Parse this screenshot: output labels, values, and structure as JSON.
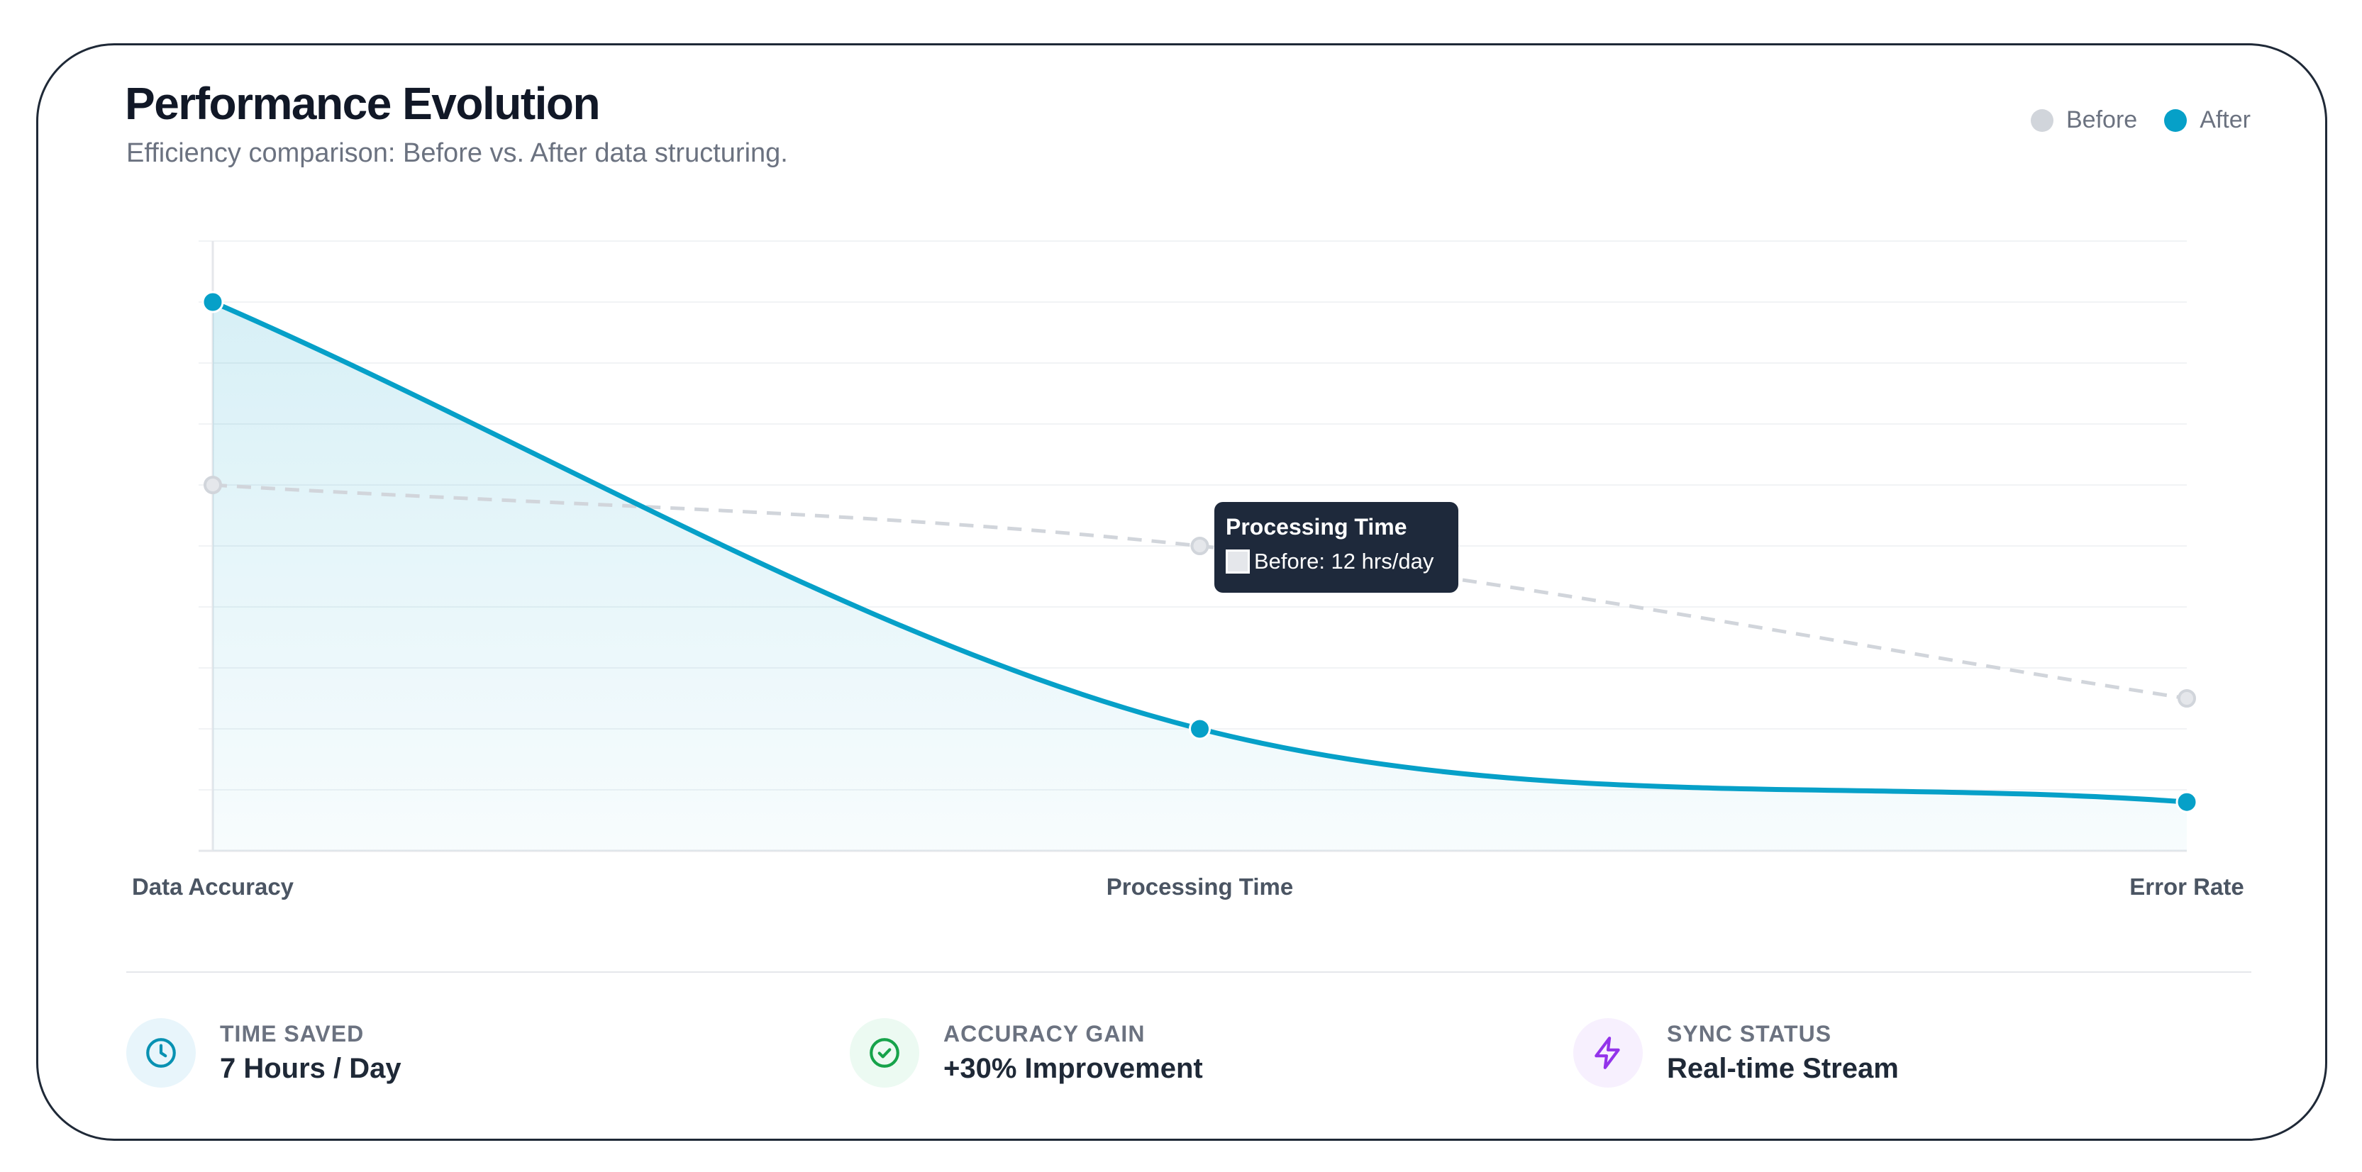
{
  "header": {
    "title": "Performance Evolution",
    "subtitle": "Efficiency comparison: Before vs. After data structuring."
  },
  "legend": [
    {
      "label": "Before",
      "color": "#d1d5db"
    },
    {
      "label": "After",
      "color": "#06a0c8"
    }
  ],
  "chart_data": {
    "type": "line",
    "title": "Performance Evolution",
    "subtitle": "Efficiency comparison: Before vs. After data structuring.",
    "categories": [
      "Data Accuracy",
      "Processing Time",
      "Error Rate"
    ],
    "ylim": [
      0,
      100
    ],
    "grid": true,
    "y_ticks_shown": false,
    "legend_position": "top-right",
    "series": [
      {
        "name": "Before",
        "values": [
          60,
          50,
          25
        ],
        "color": "#d1d5db",
        "style": "dashed",
        "fill": false
      },
      {
        "name": "After",
        "values": [
          90,
          20,
          8
        ],
        "color": "#06a0c8",
        "style": "solid",
        "fill": true
      }
    ],
    "tooltip": {
      "category": "Processing Time",
      "series": "Before",
      "text": "Before: 12 hrs/day"
    }
  },
  "tooltip": {
    "title": "Processing Time",
    "line": "Before: 12 hrs/day"
  },
  "stats": [
    {
      "label": "TIME SAVED",
      "value": "7 Hours / Day",
      "icon": "clock-icon",
      "icon_color": "#0891b2",
      "icon_bg": "#e8f5fb"
    },
    {
      "label": "ACCURACY GAIN",
      "value": "+30% Improvement",
      "icon": "check-circle-icon",
      "icon_color": "#16a34a",
      "icon_bg": "#ecfaf2"
    },
    {
      "label": "SYNC STATUS",
      "value": "Real-time Stream",
      "icon": "lightning-icon",
      "icon_color": "#9333ea",
      "icon_bg": "#f7f0fe"
    }
  ]
}
